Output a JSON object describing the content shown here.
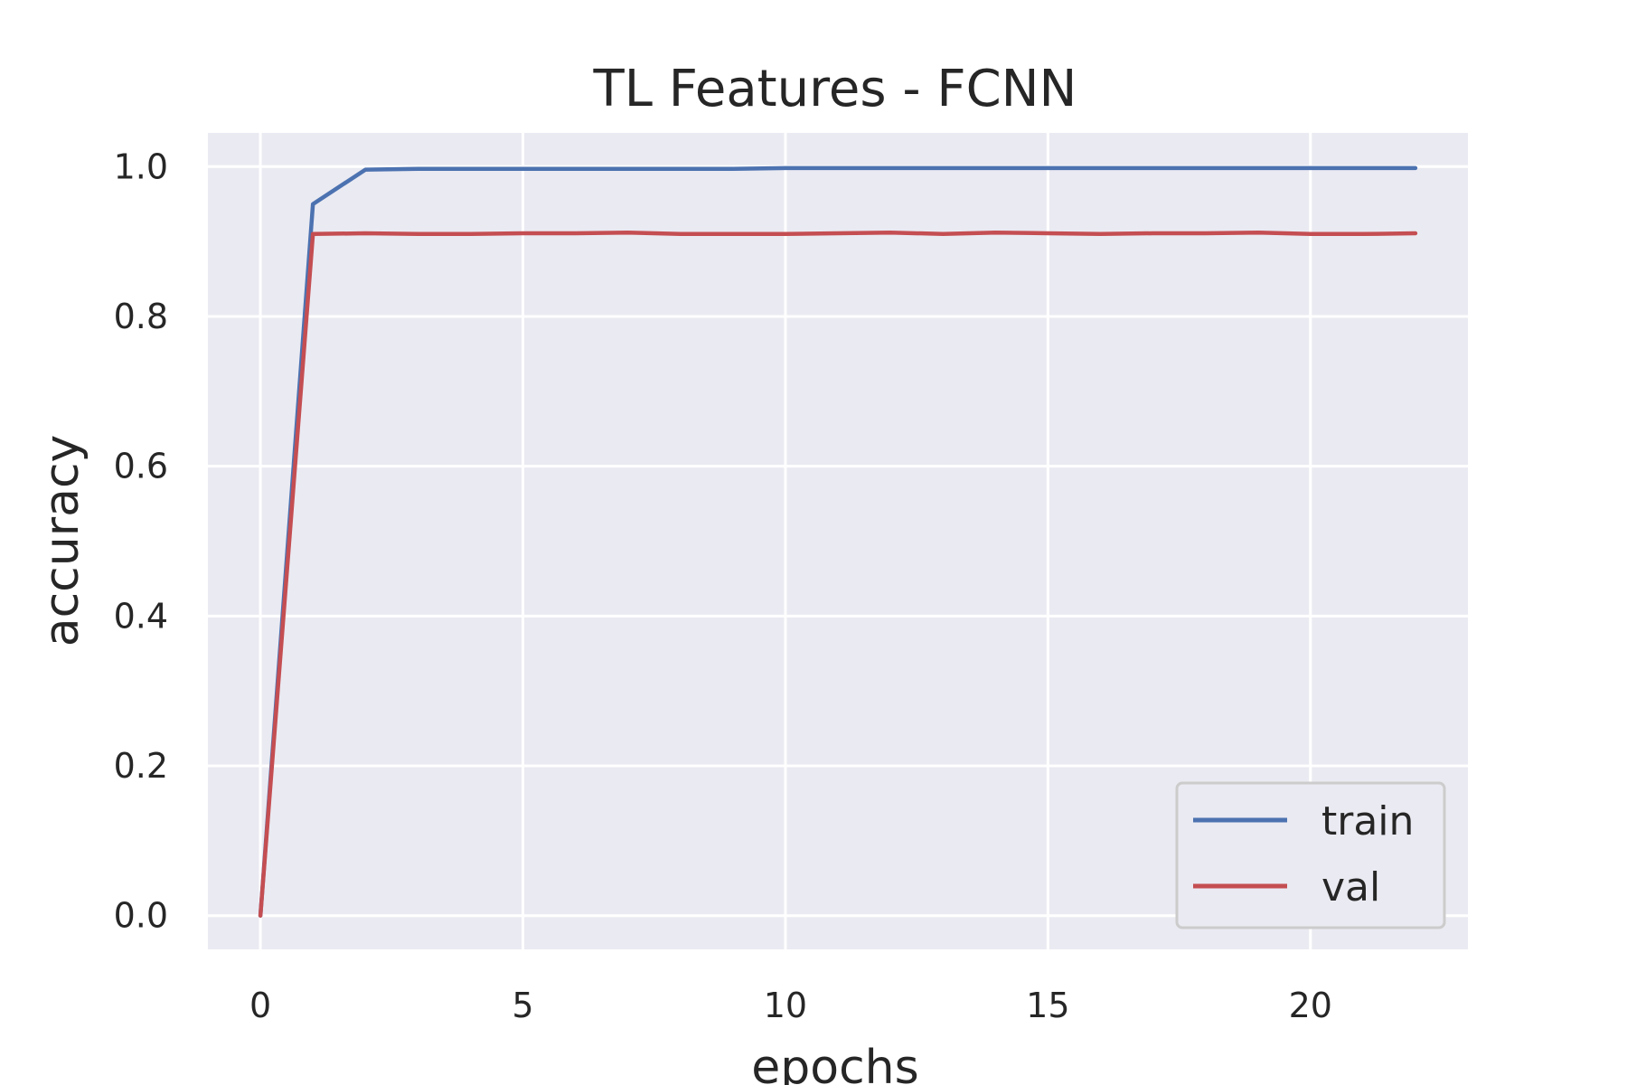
{
  "chart_data": {
    "type": "line",
    "title": "TL Features - FCNN",
    "xlabel": "epochs",
    "ylabel": "accuracy",
    "xlim": [
      -1,
      23
    ],
    "ylim": [
      -0.045,
      1.045
    ],
    "xticks": [
      0,
      5,
      10,
      15,
      20
    ],
    "yticks": [
      0.0,
      0.2,
      0.4,
      0.6,
      0.8,
      1.0
    ],
    "xtick_labels": [
      "0",
      "5",
      "10",
      "15",
      "20"
    ],
    "ytick_labels": [
      "0.0",
      "0.2",
      "0.4",
      "0.6",
      "0.8",
      "1.0"
    ],
    "grid": true,
    "legend_position": "lower-right",
    "background_color": "#EAEAF2",
    "grid_color": "#FFFFFF",
    "x": [
      0,
      1,
      2,
      3,
      4,
      5,
      6,
      7,
      8,
      9,
      10,
      11,
      12,
      13,
      14,
      15,
      16,
      17,
      18,
      19,
      20,
      21,
      22
    ],
    "series": [
      {
        "name": "train",
        "color": "#4C72B0",
        "values": [
          0.0,
          0.95,
          0.996,
          0.997,
          0.997,
          0.997,
          0.997,
          0.997,
          0.997,
          0.997,
          0.998,
          0.998,
          0.998,
          0.998,
          0.998,
          0.998,
          0.998,
          0.998,
          0.998,
          0.998,
          0.998,
          0.998,
          0.998
        ]
      },
      {
        "name": "val",
        "color": "#C44E52",
        "values": [
          0.0,
          0.91,
          0.911,
          0.91,
          0.91,
          0.911,
          0.911,
          0.912,
          0.91,
          0.91,
          0.91,
          0.911,
          0.912,
          0.91,
          0.912,
          0.911,
          0.91,
          0.911,
          0.911,
          0.912,
          0.91,
          0.91,
          0.911
        ]
      }
    ]
  }
}
